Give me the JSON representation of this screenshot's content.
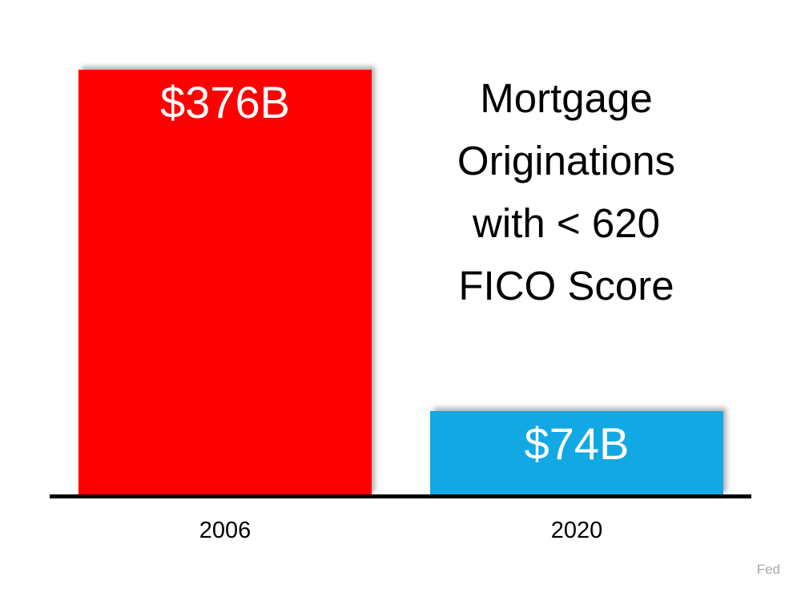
{
  "chart_data": {
    "type": "bar",
    "title": "Mortgage Originations with < 620 FICO Score",
    "title_display": "Mortgage\nOriginations\nwith < 620\nFICO Score",
    "categories": [
      "2006",
      "2020"
    ],
    "values": [
      376,
      74
    ],
    "data_labels": [
      "$376B",
      "$74B"
    ],
    "bar_colors": [
      "#FE0000",
      "#12A8E4"
    ],
    "value_label_color": "#FFFFFF",
    "title_color": "#000000",
    "axis_color": "#000000",
    "background": "#FFFFFF",
    "source": "Fed",
    "source_color": "#A8A8A8",
    "ylim": [
      0,
      376
    ],
    "grid": false,
    "legend": false
  }
}
